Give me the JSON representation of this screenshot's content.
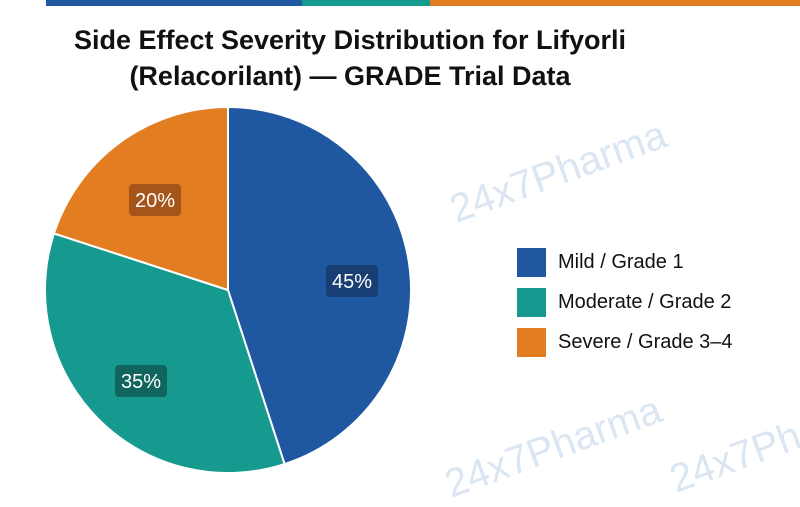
{
  "watermark": "24x7Pharma",
  "accent_bar": [
    "#1f57a0",
    "#16998f",
    "#e27d22"
  ],
  "chart_data": {
    "type": "pie",
    "title": "Side Effect Severity Distribution for Lifyorli (Relacorilant) — GRADE Trial Data",
    "title_lines": [
      "Side Effect Severity Distribution for Lifyorli",
      "(Relacorilant) — GRADE Trial Data"
    ],
    "categories": [
      "Mild / Grade 1",
      "Moderate / Grade 2",
      "Severe / Grade 3–4"
    ],
    "values": [
      45,
      35,
      20
    ],
    "labels": [
      "45%",
      "35%",
      "20%"
    ],
    "colors": [
      "#1f57a0",
      "#16998f",
      "#e27d22"
    ],
    "label_bg": [
      "#173f73",
      "#10665f",
      "#a6551a"
    ],
    "legend_position": "right"
  }
}
